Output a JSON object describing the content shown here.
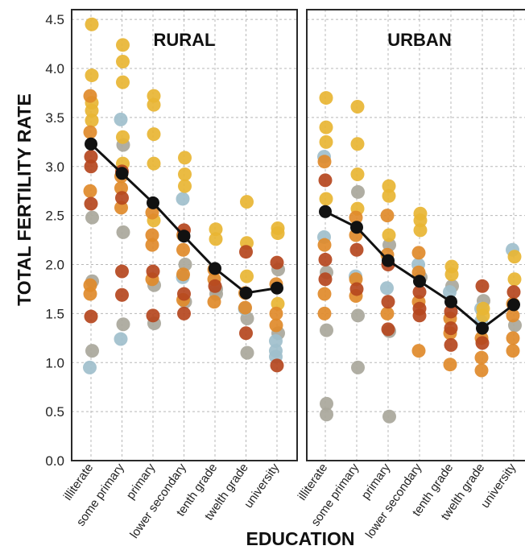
{
  "chart_data": {
    "type": "scatter",
    "ylabel": "TOTAL FERTILITY RATE",
    "xlabel": "EDUCATION",
    "ylim": [
      0,
      4.6
    ],
    "yticks": [
      "0.0",
      "0.5",
      "1.0",
      "1.5",
      "2.0",
      "2.5",
      "3.0",
      "3.5",
      "4.0",
      "4.5"
    ],
    "categories": [
      "illiterate",
      "some primary",
      "primary",
      "lower secondary",
      "tenth grade",
      "twelth grade",
      "university"
    ],
    "grid": true,
    "colors": {
      "gold": "#E8B533",
      "orange": "#E08A2A",
      "rust": "#B5471E",
      "grey": "#A9A79B",
      "blue": "#9FBFCC",
      "mean": "#111111"
    },
    "panels": [
      {
        "title": "RURAL",
        "mean": [
          3.23,
          2.93,
          2.63,
          2.29,
          1.96,
          1.71,
          1.76
        ],
        "points": [
          {
            "category": "illiterate",
            "gold": [
              4.45,
              3.93,
              3.65,
              3.57,
              3.47
            ],
            "orange": [
              3.72,
              3.35,
              2.75,
              1.79,
              1.7
            ],
            "rust": [
              3.1,
              3.0,
              2.62,
              1.47
            ],
            "grey": [
              2.48,
              1.83,
              1.12
            ],
            "blue": [
              0.95
            ]
          },
          {
            "category": "some primary",
            "gold": [
              4.24,
              4.07,
              3.86,
              3.3,
              3.03
            ],
            "orange": [
              2.9,
              2.78,
              2.58
            ],
            "rust": [
              2.95,
              2.68,
              1.93,
              1.69
            ],
            "grey": [
              3.22,
              2.33,
              1.39
            ],
            "blue": [
              3.48,
              1.24
            ]
          },
          {
            "category": "primary",
            "gold": [
              3.72,
              3.63,
              3.33,
              3.03,
              2.45
            ],
            "orange": [
              2.53,
              2.3,
              2.2,
              1.85
            ],
            "rust": [
              1.93,
              1.48
            ],
            "grey": [
              1.79,
              1.4
            ]
          },
          {
            "category": "lower secondary",
            "gold": [
              3.09,
              2.92,
              2.8
            ],
            "orange": [
              2.3,
              2.15,
              1.9,
              1.64
            ],
            "rust": [
              2.35,
              1.7,
              1.5
            ],
            "grey": [
              2.0,
              1.62
            ],
            "blue": [
              2.67,
              1.87
            ]
          },
          {
            "category": "tenth grade",
            "gold": [
              2.36,
              2.26
            ],
            "orange": [
              1.95,
              1.85,
              1.62
            ],
            "rust": [
              1.78
            ],
            "grey": [
              1.75,
              1.7
            ]
          },
          {
            "category": "twelth grade",
            "gold": [
              2.64,
              2.22,
              1.88
            ],
            "orange": [
              1.71,
              1.56
            ],
            "rust": [
              2.13,
              1.3
            ],
            "grey": [
              1.45,
              1.1
            ],
            "blue": [
              1.55
            ]
          },
          {
            "category": "university",
            "gold": [
              2.37,
              2.32,
              1.6
            ],
            "orange": [
              1.8,
              1.5,
              1.38
            ],
            "rust": [
              2.02,
              0.97
            ],
            "grey": [
              1.95,
              1.3
            ],
            "blue": [
              1.22,
              1.12,
              1.06
            ]
          }
        ]
      },
      {
        "title": "URBAN",
        "mean": [
          2.54,
          2.38,
          2.04,
          1.83,
          1.62,
          1.35,
          1.59
        ],
        "points": [
          {
            "category": "illiterate",
            "gold": [
              3.7,
              3.4,
              3.25,
              2.67
            ],
            "orange": [
              3.05,
              2.2,
              1.7,
              1.5
            ],
            "rust": [
              2.86,
              2.05,
              1.85
            ],
            "grey": [
              1.92,
              1.33,
              0.58,
              0.47
            ],
            "blue": [
              3.1,
              2.28
            ]
          },
          {
            "category": "some primary",
            "gold": [
              3.61,
              3.23,
              2.92,
              2.57
            ],
            "orange": [
              2.48,
              2.3,
              1.85,
              1.68
            ],
            "rust": [
              2.15,
              1.75
            ],
            "grey": [
              2.74,
              1.48,
              0.95
            ],
            "blue": [
              1.88
            ]
          },
          {
            "category": "primary",
            "gold": [
              2.8,
              2.7,
              2.3
            ],
            "orange": [
              2.5,
              2.1,
              1.5
            ],
            "rust": [
              2.0,
              1.62,
              1.34
            ],
            "grey": [
              2.2,
              1.32,
              0.45
            ],
            "blue": [
              1.76
            ]
          },
          {
            "category": "lower secondary",
            "gold": [
              2.52,
              2.45,
              2.35
            ],
            "orange": [
              2.12,
              1.92,
              1.62,
              1.12
            ],
            "rust": [
              1.72,
              1.55,
              1.48
            ],
            "grey": [
              1.87
            ],
            "blue": [
              2.0
            ]
          },
          {
            "category": "tenth grade",
            "gold": [
              1.98,
              1.9
            ],
            "orange": [
              1.45,
              1.3,
              0.98
            ],
            "rust": [
              1.52,
              1.35,
              1.18
            ],
            "grey": [
              1.78
            ],
            "blue": [
              1.72
            ]
          },
          {
            "category": "twelth grade",
            "gold": [
              1.55,
              1.48
            ],
            "orange": [
              1.25,
              1.05,
              0.92
            ],
            "rust": [
              1.78,
              1.2
            ],
            "grey": [
              1.63
            ],
            "blue": [
              1.55,
              1.42
            ]
          },
          {
            "category": "university",
            "gold": [
              2.08,
              1.85
            ],
            "orange": [
              1.6,
              1.48,
              1.25,
              1.12
            ],
            "rust": [
              1.72
            ],
            "grey": [
              1.38
            ],
            "blue": [
              2.15
            ]
          }
        ]
      }
    ]
  }
}
